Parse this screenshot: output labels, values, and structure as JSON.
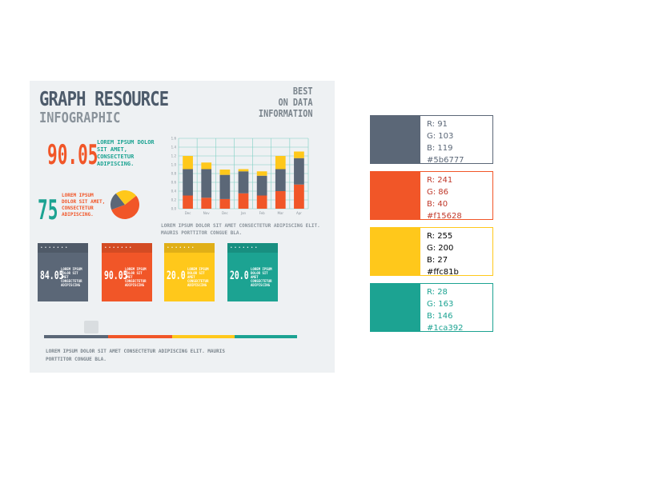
{
  "infographic": {
    "title_line1": "GRAPH RESOURCE",
    "title_line2": "INFOGRAPHIC",
    "best_lines": [
      "BEST",
      "ON DATA",
      "INFORMATION"
    ],
    "stat1": {
      "value": "90.05",
      "text": "LOREM IPSUM DOLOR SIT AMET, CONSECTETUR ADIPISCING."
    },
    "stat2": {
      "value": "75",
      "text": "LOREM IPSUM DOLOR SIT AMET, CONSECTETUR ADIPISCING."
    },
    "chart_text": "LOREM IPSUM DOLOR SIT AMET CONSECTETUR ADIPISCING ELIT. MAURIS PORTTITOR CONGUE BLA.",
    "footer_text": "LOREM IPSUM DOLOR SIT AMET CONSECTETUR ADIPISCING ELIT. MAURIS PORTTITOR CONGUE BLA.",
    "cards": [
      {
        "value": "84.05",
        "text": "LOREM IPSUM DOLOR SIT AMET CONSECTETUR ADIPISCING",
        "color": "#5b6777"
      },
      {
        "value": "90.05",
        "text": "LOREM IPSUM DOLOR SIT AMET CONSECTETUR ADIPISCING",
        "color": "#f15628"
      },
      {
        "value": "20.0",
        "text": "LOREM IPSUM DOLOR SIT AMET CONSECTETUR ADIPISCING",
        "color": "#ffc81b"
      },
      {
        "value": "20.0",
        "text": "LOREM IPSUM DOLOR SIT AMET CONSECTETUR ADIPISCING",
        "color": "#1ca392"
      }
    ],
    "card_dots": "• • • • • • •",
    "strip_colors": [
      "#5b6777",
      "#f15628",
      "#ffc81b",
      "#1ca392"
    ]
  },
  "chart_data": {
    "type": "bar",
    "stacked": true,
    "categories": [
      "Dec",
      "Nov",
      "Dec",
      "Jan",
      "Feb",
      "Mar",
      "Apr"
    ],
    "y_ticks": [
      "0.0",
      "0.2",
      "0.4",
      "0.6",
      "0.8",
      "1.0",
      "1.2",
      "1.4",
      "1.6"
    ],
    "ylim": [
      0,
      1.6
    ],
    "series": [
      {
        "color": "#f15628",
        "values": [
          0.3,
          0.25,
          0.22,
          0.35,
          0.3,
          0.4,
          0.55
        ]
      },
      {
        "color": "#5b6777",
        "values": [
          0.6,
          0.65,
          0.55,
          0.5,
          0.45,
          0.5,
          0.6
        ]
      },
      {
        "color": "#ffc81b",
        "values": [
          0.3,
          0.15,
          0.12,
          0.05,
          0.1,
          0.3,
          0.15
        ]
      }
    ],
    "grid": true
  },
  "pie_data": {
    "type": "pie",
    "slices": [
      {
        "value": 55,
        "color": "#f15628"
      },
      {
        "value": 20,
        "color": "#5b6777"
      },
      {
        "value": 25,
        "color": "#ffc81b"
      }
    ]
  },
  "swatches": [
    {
      "r": "R: 91",
      "g": "G: 103",
      "b": "B: 119",
      "hex": "#5b6777",
      "color": "#5b6777",
      "text_color": "#5b6777"
    },
    {
      "r": "R: 241",
      "g": "G: 86",
      "b": "B: 40",
      "hex": "#f15628",
      "color": "#f15628",
      "text_color": "#c0392b"
    },
    {
      "r": "R: 255",
      "g": "G: 200",
      "b": "B: 27",
      "hex": "#ffc81b",
      "color": "#ffc81b",
      "text_color": "#000000"
    },
    {
      "r": "R: 28",
      "g": "G: 163",
      "b": "B: 146",
      "hex": "#1ca392",
      "color": "#1ca392",
      "text_color": "#1ca392"
    }
  ]
}
